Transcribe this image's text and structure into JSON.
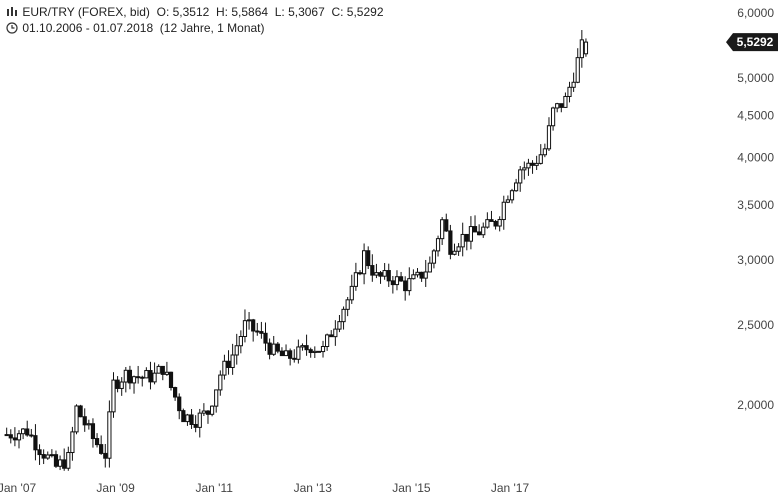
{
  "header": {
    "symbol_line": {
      "title": "EUR/TRY (FOREX, bid)",
      "open_label": "O:",
      "open": "5,3512",
      "high_label": "H:",
      "high": "5,5864",
      "low_label": "L:",
      "low": "5,3067",
      "close_label": "C:",
      "close": "5,5292"
    },
    "range_line": {
      "dates": "01.10.2006 - 01.07.2018",
      "duration": "(12 Jahre, 1 Monat)"
    },
    "icons": {
      "indicator": "chart-indicator-icon",
      "time": "clock-icon"
    }
  },
  "chart_data": {
    "type": "candlestick",
    "title": "EUR/TRY (FOREX, bid)",
    "yscale": "log",
    "ylim": [
      1.62,
      6.05
    ],
    "y_ticks": [
      2.0,
      2.5,
      3.0,
      3.5,
      4.0,
      4.5,
      5.0,
      6.0
    ],
    "y_tick_labels": [
      "2,0000",
      "2,5000",
      "3,0000",
      "3,5000",
      "4,0000",
      "4,5000",
      "5,0000",
      "6,0000"
    ],
    "x_ticks": [
      {
        "label": "Jan '07",
        "year": 2007.0
      },
      {
        "label": "Jan '09",
        "year": 2009.0
      },
      {
        "label": "Jan '11",
        "year": 2011.0
      },
      {
        "label": "Jan '13",
        "year": 2013.0
      },
      {
        "label": "Jan '15",
        "year": 2015.0
      },
      {
        "label": "Jan '17",
        "year": 2017.0
      }
    ],
    "last_value_label": "5,5292",
    "last_value": 5.5292,
    "colors": {
      "candle": "#111111",
      "badge": "#1a1a1a",
      "axis_text": "#444444"
    },
    "anchor_closes": [
      [
        "2006-10",
        1.84
      ],
      [
        "2007-03",
        1.86
      ],
      [
        "2007-06",
        1.77
      ],
      [
        "2007-10",
        1.68
      ],
      [
        "2008-01",
        1.72
      ],
      [
        "2008-03",
        1.98
      ],
      [
        "2008-07",
        1.82
      ],
      [
        "2008-10",
        1.74
      ],
      [
        "2008-12",
        2.12
      ],
      [
        "2009-03",
        2.18
      ],
      [
        "2009-07",
        2.16
      ],
      [
        "2009-10",
        2.17
      ],
      [
        "2009-12",
        2.22
      ],
      [
        "2010-02",
        2.1
      ],
      [
        "2010-05",
        1.94
      ],
      [
        "2010-08",
        1.92
      ],
      [
        "2010-11",
        1.96
      ],
      [
        "2011-02",
        2.18
      ],
      [
        "2011-05",
        2.3
      ],
      [
        "2011-08",
        2.5
      ],
      [
        "2011-11",
        2.45
      ],
      [
        "2012-03",
        2.32
      ],
      [
        "2012-06",
        2.28
      ],
      [
        "2012-09",
        2.31
      ],
      [
        "2012-12",
        2.36
      ],
      [
        "2013-03",
        2.33
      ],
      [
        "2013-07",
        2.58
      ],
      [
        "2013-10",
        2.74
      ],
      [
        "2014-01",
        3.05
      ],
      [
        "2014-04",
        2.86
      ],
      [
        "2014-08",
        2.85
      ],
      [
        "2014-11",
        2.8
      ],
      [
        "2015-02",
        2.85
      ],
      [
        "2015-05",
        2.96
      ],
      [
        "2015-08",
        3.35
      ],
      [
        "2015-10",
        3.12
      ],
      [
        "2016-01",
        3.2
      ],
      [
        "2016-05",
        3.25
      ],
      [
        "2016-09",
        3.34
      ],
      [
        "2016-12",
        3.62
      ],
      [
        "2017-03",
        3.88
      ],
      [
        "2017-06",
        3.92
      ],
      [
        "2017-09",
        4.1
      ],
      [
        "2017-11",
        4.55
      ],
      [
        "2018-02",
        4.7
      ],
      [
        "2018-04",
        5.05
      ],
      [
        "2018-06",
        5.45
      ],
      [
        "2018-07",
        5.53
      ]
    ]
  }
}
